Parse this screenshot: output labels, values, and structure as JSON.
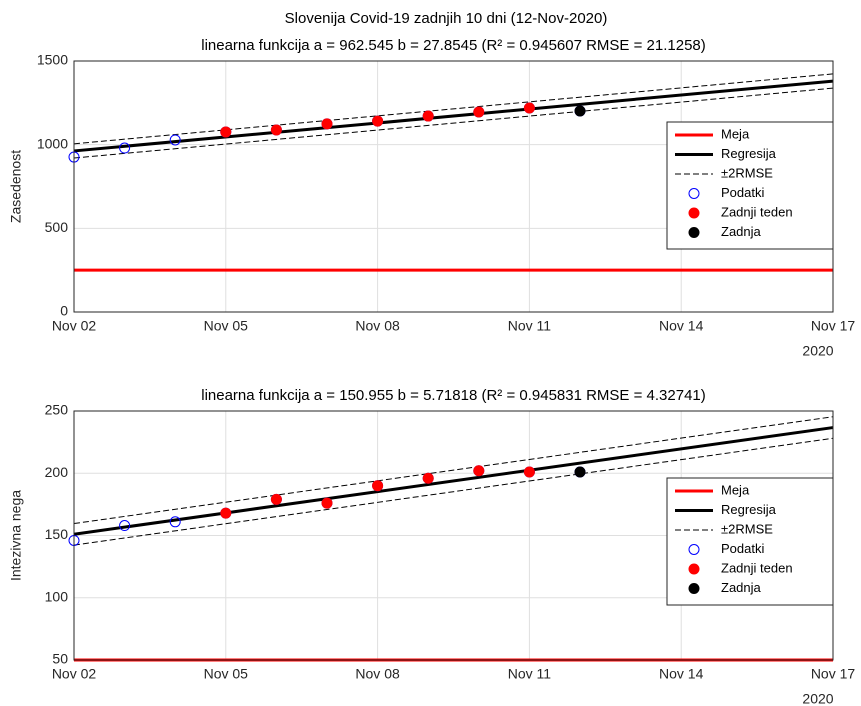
{
  "title": "Slovenija Covid-19 zadnjih 10 dni (12-Nov-2020)",
  "chart_data": [
    {
      "type": "line",
      "title": "linearna funkcija a =  962.545 b = 27.8545 (R² = 0.945607  RMSE = 21.1258)",
      "ylabel": "Zasedenost",
      "x_year_label": "2020",
      "xlim": [
        "2020-11-02",
        "2020-11-17"
      ],
      "xticks": [
        {
          "value": "2020-11-02",
          "label": "Nov 02"
        },
        {
          "value": "2020-11-05",
          "label": "Nov 05"
        },
        {
          "value": "2020-11-08",
          "label": "Nov 08"
        },
        {
          "value": "2020-11-11",
          "label": "Nov 11"
        },
        {
          "value": "2020-11-14",
          "label": "Nov 14"
        },
        {
          "value": "2020-11-17",
          "label": "Nov 17"
        }
      ],
      "ylim": [
        0,
        1500
      ],
      "yticks": [
        0,
        500,
        1000,
        1500
      ],
      "grid": true,
      "legend": "right",
      "series": [
        {
          "name": "Meja",
          "color": "#ff0000",
          "style": "line",
          "x": [
            "2020-11-02",
            "2020-11-17"
          ],
          "values": [
            250,
            250
          ]
        },
        {
          "name": "Regresija",
          "color": "#000000",
          "style": "line",
          "x": [
            "2020-11-02",
            "2020-11-17"
          ],
          "values": [
            962.5,
            1380
          ]
        },
        {
          "name": "±2RMSE",
          "color": "#000000",
          "style": "dashed",
          "x": [
            "2020-11-02",
            "2020-11-17"
          ],
          "values": [
            1005,
            1423
          ]
        },
        {
          "color": "#000000",
          "style": "dashed",
          "x": [
            "2020-11-02",
            "2020-11-17"
          ],
          "values": [
            920,
            1338
          ]
        },
        {
          "name": "Podatki",
          "color": "#0000ff",
          "style": "open-circle",
          "x": [
            "2020-11-02",
            "2020-11-03",
            "2020-11-04",
            "2020-11-05",
            "2020-11-06",
            "2020-11-07",
            "2020-11-08",
            "2020-11-09",
            "2020-11-10",
            "2020-11-11",
            "2020-11-12"
          ],
          "values": [
            926,
            980,
            1028,
            1076,
            1088,
            1124,
            1141,
            1171,
            1195,
            1219,
            1201
          ]
        },
        {
          "name": "Zadnji teden",
          "color": "#ff0000",
          "style": "filled-circle",
          "x": [
            "2020-11-05",
            "2020-11-06",
            "2020-11-07",
            "2020-11-08",
            "2020-11-09",
            "2020-11-10",
            "2020-11-11"
          ],
          "values": [
            1076,
            1088,
            1124,
            1141,
            1171,
            1195,
            1219
          ]
        },
        {
          "name": "Zadnja",
          "color": "#000000",
          "style": "filled-circle",
          "x": [
            "2020-11-12"
          ],
          "values": [
            1201
          ]
        }
      ]
    },
    {
      "type": "line",
      "title": "linearna funkcija a =  150.955 b = 5.71818 (R² = 0.945831  RMSE = 4.32741)",
      "ylabel": "Intezivna nega",
      "x_year_label": "2020",
      "xlim": [
        "2020-11-02",
        "2020-11-17"
      ],
      "xticks": [
        {
          "value": "2020-11-02",
          "label": "Nov 02"
        },
        {
          "value": "2020-11-05",
          "label": "Nov 05"
        },
        {
          "value": "2020-11-08",
          "label": "Nov 08"
        },
        {
          "value": "2020-11-11",
          "label": "Nov 11"
        },
        {
          "value": "2020-11-14",
          "label": "Nov 14"
        },
        {
          "value": "2020-11-17",
          "label": "Nov 17"
        }
      ],
      "ylim": [
        50,
        250
      ],
      "yticks": [
        50,
        100,
        150,
        200,
        250
      ],
      "grid": true,
      "legend": "right",
      "series": [
        {
          "name": "Meja",
          "color": "#ff0000",
          "style": "line",
          "x": [
            "2020-11-02",
            "2020-11-17"
          ],
          "values": [
            50,
            50
          ]
        },
        {
          "name": "Regresija",
          "color": "#000000",
          "style": "line",
          "x": [
            "2020-11-02",
            "2020-11-17"
          ],
          "values": [
            151,
            236.7
          ]
        },
        {
          "name": "±2RMSE",
          "color": "#000000",
          "style": "dashed",
          "x": [
            "2020-11-02",
            "2020-11-17"
          ],
          "values": [
            159.6,
            245.4
          ]
        },
        {
          "color": "#000000",
          "style": "dashed",
          "x": [
            "2020-11-02",
            "2020-11-17"
          ],
          "values": [
            142.3,
            228.1
          ]
        },
        {
          "name": "Podatki",
          "color": "#0000ff",
          "style": "open-circle",
          "x": [
            "2020-11-02",
            "2020-11-03",
            "2020-11-04",
            "2020-11-05",
            "2020-11-06",
            "2020-11-07",
            "2020-11-08",
            "2020-11-09",
            "2020-11-10",
            "2020-11-11",
            "2020-11-12"
          ],
          "values": [
            146,
            158,
            161,
            168,
            179,
            176,
            190,
            196,
            202,
            201,
            201
          ]
        },
        {
          "name": "Zadnji teden",
          "color": "#ff0000",
          "style": "filled-circle",
          "x": [
            "2020-11-05",
            "2020-11-06",
            "2020-11-07",
            "2020-11-08",
            "2020-11-09",
            "2020-11-10",
            "2020-11-11"
          ],
          "values": [
            168,
            179,
            176,
            190,
            196,
            202,
            201
          ]
        },
        {
          "name": "Zadnja",
          "color": "#000000",
          "style": "filled-circle",
          "x": [
            "2020-11-12"
          ],
          "values": [
            201
          ]
        }
      ]
    }
  ]
}
